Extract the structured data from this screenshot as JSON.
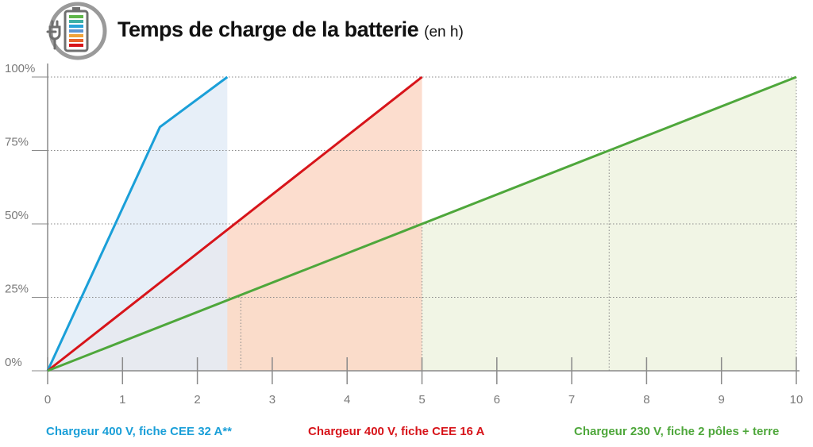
{
  "title": "Temps de charge de la batterie",
  "title_unit": "(en h)",
  "icon": "battery-charging-plug-icon",
  "chart_data": {
    "type": "line",
    "x_ticks": [
      "0",
      "1",
      "2",
      "3",
      "4",
      "5",
      "6",
      "7",
      "8",
      "9",
      "10"
    ],
    "y_ticks": [
      "0%",
      "25%",
      "50%",
      "75%",
      "100%"
    ],
    "xlim": [
      0,
      10
    ],
    "ylim": [
      0,
      100
    ],
    "series": [
      {
        "name": "Chargeur 400 V, fiche CEE 32 A**",
        "color": "#1a9fd8",
        "fill": "#e3ecf7",
        "points": [
          [
            0,
            0
          ],
          [
            1.5,
            83
          ],
          [
            2.4,
            100
          ]
        ]
      },
      {
        "name": "Chargeur 400 V, fiche CEE 16 A",
        "color": "#d7141a",
        "fill": "#fbd7c5",
        "points": [
          [
            0,
            0
          ],
          [
            5,
            100
          ]
        ]
      },
      {
        "name": "Chargeur 230 V, fiche 2 pôles + terre",
        "color": "#4ea73b",
        "fill": "#eef3e0",
        "points": [
          [
            0,
            0
          ],
          [
            10,
            100
          ]
        ]
      }
    ]
  }
}
